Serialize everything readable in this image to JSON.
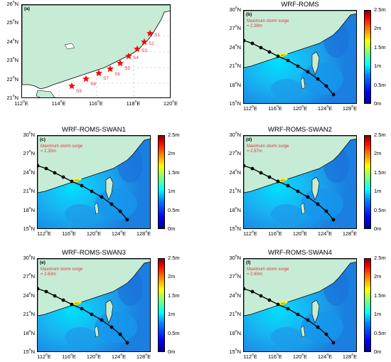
{
  "colors": {
    "land": "#c6ecd6",
    "sea_base": "#2aa8f0",
    "track": "#000000",
    "star": "#ff0000",
    "label_red": "#e8303a"
  },
  "panel_a": {
    "label": "(a)",
    "y_ticks": [
      "26°N",
      "25°N",
      "24°N",
      "23°N",
      "22°N",
      "21°N"
    ],
    "x_ticks": [
      "112°E",
      "114°E",
      "116°E",
      "118°E",
      "120°E"
    ],
    "stations": [
      "S1",
      "S2",
      "S3",
      "S4",
      "S5",
      "S6",
      "S7",
      "S8",
      "S9"
    ]
  },
  "panels": [
    {
      "label": "(b)",
      "title": "WRF-ROMS",
      "annotation": "Maximum storm surge",
      "value": "= 2.38m"
    },
    {
      "label": "(c)",
      "title": "WRF-ROMS-SWAN1",
      "annotation": "Maximum storm surge",
      "value": "= 2.35m"
    },
    {
      "label": "(d)",
      "title": "WRF-ROMS-SWAN2",
      "annotation": "Maximum storm surge",
      "value": "= 2.57m"
    },
    {
      "label": "(e)",
      "title": "WRF-ROMS-SWAN3",
      "annotation": "Maximum storm surge",
      "value": "= 2.63m"
    },
    {
      "label": "(f)",
      "title": "WRF-ROMS-SWAN4",
      "annotation": "Maximum storm surge",
      "value": "= 2.60m"
    }
  ],
  "large_y_ticks": [
    "30°N",
    "27°N",
    "24°N",
    "21°N",
    "18°N",
    "15°N"
  ],
  "large_x_ticks": [
    "112°E",
    "116°E",
    "120°E",
    "124°E",
    "128°E"
  ],
  "colorbar_ticks": [
    "2.5m",
    "2m",
    "1.5m",
    "1m",
    "0.5m",
    "0m"
  ]
}
